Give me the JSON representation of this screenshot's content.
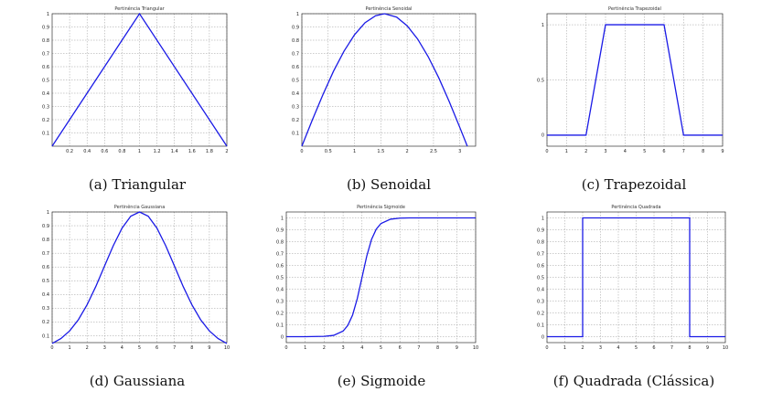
{
  "chart_data": [
    {
      "type": "line",
      "title": "Pertinência Triangular",
      "caption": "(a) Triangular",
      "xlim": [
        0,
        2
      ],
      "ylim": [
        0,
        1
      ],
      "xticks": [
        0.2,
        0.4,
        0.6,
        0.8,
        1,
        1.2,
        1.4,
        1.6,
        1.8,
        2
      ],
      "xtick_labels": [
        "0.2",
        "0.4",
        "0.6",
        "0.8",
        "1",
        "1.2",
        "1.4",
        "1.6",
        "1.8",
        "2"
      ],
      "yticks": [
        0.1,
        0.2,
        0.3,
        0.4,
        0.5,
        0.6,
        0.7,
        0.8,
        0.9,
        1
      ],
      "ytick_labels": [
        "0.1",
        "0.2",
        "0.3",
        "0.4",
        "0.5",
        "0.6",
        "0.7",
        "0.8",
        "0.9",
        "1"
      ],
      "grid": true,
      "x": [
        0,
        1,
        2
      ],
      "y": [
        0,
        1,
        0
      ]
    },
    {
      "type": "line",
      "title": "Pertinência Senoidal",
      "caption": "(b) Senoidal",
      "xlim": [
        0,
        3.3
      ],
      "ylim": [
        0,
        1
      ],
      "xticks": [
        0,
        0.5,
        1,
        1.5,
        2,
        2.5,
        3
      ],
      "xtick_labels": [
        "0",
        "0.5",
        "1",
        "1.5",
        "2",
        "2.5",
        "3"
      ],
      "yticks": [
        0.1,
        0.2,
        0.3,
        0.4,
        0.5,
        0.6,
        0.7,
        0.8,
        0.9,
        1
      ],
      "ytick_labels": [
        "0.1",
        "0.2",
        "0.3",
        "0.4",
        "0.5",
        "0.6",
        "0.7",
        "0.8",
        "0.9",
        "1"
      ],
      "grid": true,
      "x": [
        0,
        0.2,
        0.4,
        0.6,
        0.8,
        1.0,
        1.2,
        1.4,
        1.5708,
        1.8,
        2.0,
        2.2,
        2.4,
        2.6,
        2.8,
        3.0,
        3.1416
      ],
      "y": [
        0,
        0.199,
        0.389,
        0.565,
        0.717,
        0.841,
        0.932,
        0.985,
        1,
        0.974,
        0.909,
        0.808,
        0.675,
        0.516,
        0.335,
        0.141,
        0
      ]
    },
    {
      "type": "line",
      "title": "Pertinência Trapezoidal",
      "caption": "(c) Trapezoidal",
      "xlim": [
        0,
        9
      ],
      "ylim": [
        -0.1,
        1.1
      ],
      "xticks": [
        0,
        1,
        2,
        3,
        4,
        5,
        6,
        7,
        8,
        9
      ],
      "xtick_labels": [
        "0",
        "1",
        "2",
        "3",
        "4",
        "5",
        "6",
        "7",
        "8",
        "9"
      ],
      "yticks": [
        0,
        0.5,
        1
      ],
      "ytick_labels": [
        "0",
        "0.5",
        "1"
      ],
      "grid": true,
      "x": [
        0,
        2,
        3,
        6,
        7,
        9
      ],
      "y": [
        0,
        0,
        1,
        1,
        0,
        0
      ]
    },
    {
      "type": "line",
      "title": "Pertinência Gaussiana",
      "caption": "(d) Gaussiana",
      "xlim": [
        0,
        10
      ],
      "ylim": [
        0.05,
        1
      ],
      "xticks": [
        0,
        1,
        2,
        3,
        4,
        5,
        6,
        7,
        8,
        9,
        10
      ],
      "xtick_labels": [
        "0",
        "1",
        "2",
        "3",
        "4",
        "5",
        "6",
        "7",
        "8",
        "9",
        "10"
      ],
      "yticks": [
        0.1,
        0.2,
        0.3,
        0.4,
        0.5,
        0.6,
        0.7,
        0.8,
        0.9,
        1
      ],
      "ytick_labels": [
        "0.1",
        "0.2",
        "0.3",
        "0.4",
        "0.5",
        "0.6",
        "0.7",
        "0.8",
        "0.9",
        "1"
      ],
      "grid": true,
      "x": [
        0,
        0.5,
        1,
        1.5,
        2,
        2.5,
        3,
        3.5,
        4,
        4.5,
        5,
        5.5,
        6,
        6.5,
        7,
        7.5,
        8,
        8.5,
        9,
        9.5,
        10
      ],
      "y": [
        0.044,
        0.079,
        0.135,
        0.216,
        0.325,
        0.458,
        0.607,
        0.755,
        0.882,
        0.969,
        1,
        0.969,
        0.882,
        0.755,
        0.607,
        0.458,
        0.325,
        0.216,
        0.135,
        0.079,
        0.044
      ]
    },
    {
      "type": "line",
      "title": "Pertinência Sigmoide",
      "caption": "(e) Sigmoide",
      "xlim": [
        0,
        10
      ],
      "ylim": [
        -0.05,
        1.05
      ],
      "xticks": [
        0,
        1,
        2,
        3,
        4,
        5,
        6,
        7,
        8,
        9,
        10
      ],
      "xtick_labels": [
        "0",
        "1",
        "2",
        "3",
        "4",
        "5",
        "6",
        "7",
        "8",
        "9",
        "10"
      ],
      "yticks": [
        0,
        0.1,
        0.2,
        0.3,
        0.4,
        0.5,
        0.6,
        0.7,
        0.8,
        0.9,
        1
      ],
      "ytick_labels": [
        "0",
        "0.1",
        "0.2",
        "0.3",
        "0.4",
        "0.5",
        "0.6",
        "0.7",
        "0.8",
        "0.9",
        "1"
      ],
      "grid": true,
      "x": [
        0,
        1,
        2,
        2.5,
        3,
        3.25,
        3.5,
        3.75,
        4,
        4.25,
        4.5,
        4.75,
        5,
        5.5,
        6,
        6.5,
        7,
        8,
        9,
        10
      ],
      "y": [
        0,
        0,
        0.003,
        0.011,
        0.047,
        0.095,
        0.182,
        0.321,
        0.5,
        0.679,
        0.818,
        0.905,
        0.953,
        0.989,
        0.998,
        1,
        1,
        1,
        1,
        1
      ]
    },
    {
      "type": "line",
      "title": "Pertinência Quadrada",
      "caption": "(f) Quadrada (Clássica)",
      "xlim": [
        0,
        10
      ],
      "ylim": [
        -0.05,
        1.05
      ],
      "xticks": [
        0,
        1,
        2,
        3,
        4,
        5,
        6,
        7,
        8,
        9,
        10
      ],
      "xtick_labels": [
        "0",
        "1",
        "2",
        "3",
        "4",
        "5",
        "6",
        "7",
        "8",
        "9",
        "10"
      ],
      "yticks": [
        0,
        0.1,
        0.2,
        0.3,
        0.4,
        0.5,
        0.6,
        0.7,
        0.8,
        0.9,
        1
      ],
      "ytick_labels": [
        "0",
        "0.1",
        "0.2",
        "0.3",
        "0.4",
        "0.5",
        "0.6",
        "0.7",
        "0.8",
        "0.9",
        "1"
      ],
      "grid": true,
      "x": [
        0,
        2,
        2,
        8,
        8,
        10
      ],
      "y": [
        0,
        0,
        1,
        1,
        0,
        0
      ]
    }
  ]
}
